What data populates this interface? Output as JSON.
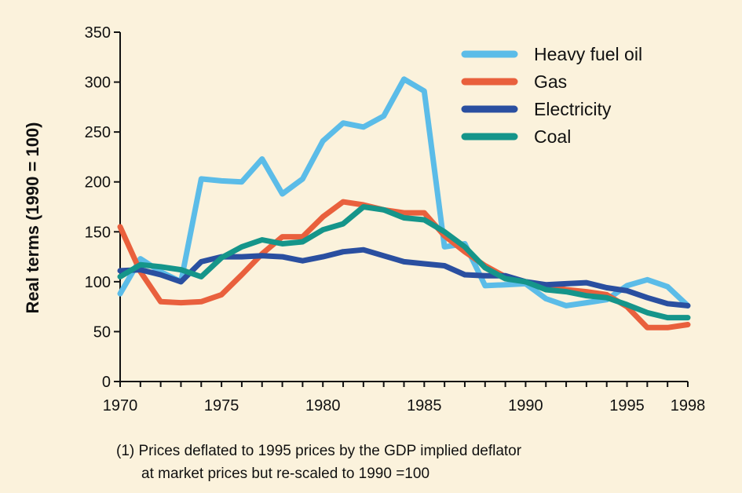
{
  "chart_data": {
    "type": "line",
    "title": "",
    "xlabel": "",
    "ylabel": "Real terms (1990 = 100)",
    "xlim": [
      1970,
      1998
    ],
    "ylim": [
      0,
      350
    ],
    "yticks": [
      0,
      50,
      100,
      150,
      200,
      250,
      300,
      350
    ],
    "xtick_labels": [
      {
        "x": 1970,
        "label": "1970"
      },
      {
        "x": 1975,
        "label": "1975"
      },
      {
        "x": 1980,
        "label": "1980"
      },
      {
        "x": 1985,
        "label": "1985"
      },
      {
        "x": 1990,
        "label": "1990"
      },
      {
        "x": 1995,
        "label": "1995"
      },
      {
        "x": 1998,
        "label": "1998"
      }
    ],
    "legend_position": "top-right",
    "x": [
      1970,
      1971,
      1972,
      1973,
      1974,
      1975,
      1976,
      1977,
      1978,
      1979,
      1980,
      1981,
      1982,
      1983,
      1984,
      1985,
      1986,
      1987,
      1988,
      1989,
      1990,
      1991,
      1992,
      1993,
      1994,
      1995,
      1996,
      1997,
      1998
    ],
    "series": [
      {
        "name": "Heavy fuel oil",
        "color": "#5bbce8",
        "values": [
          88,
          123,
          110,
          100,
          203,
          201,
          200,
          223,
          188,
          203,
          241,
          259,
          255,
          266,
          303,
          291,
          135,
          138,
          96,
          97,
          98,
          83,
          76,
          79,
          82,
          96,
          102,
          95,
          76
        ]
      },
      {
        "name": "Gas",
        "color": "#e9603d",
        "values": [
          155,
          110,
          80,
          79,
          80,
          87,
          107,
          128,
          145,
          145,
          165,
          180,
          177,
          172,
          169,
          169,
          146,
          130,
          116,
          105,
          100,
          95,
          92,
          90,
          87,
          75,
          54,
          54,
          57
        ]
      },
      {
        "name": "Electricity",
        "color": "#2a4fa0",
        "values": [
          111,
          112,
          107,
          100,
          120,
          125,
          125,
          126,
          125,
          121,
          125,
          130,
          132,
          126,
          120,
          118,
          116,
          107,
          106,
          106,
          100,
          97,
          98,
          99,
          94,
          91,
          84,
          78,
          76
        ]
      },
      {
        "name": "Coal",
        "color": "#15958a",
        "values": [
          105,
          117,
          115,
          112,
          105,
          124,
          135,
          142,
          138,
          140,
          152,
          158,
          175,
          172,
          164,
          162,
          150,
          135,
          114,
          103,
          100,
          92,
          90,
          86,
          84,
          77,
          69,
          64,
          64
        ]
      }
    ]
  },
  "footnote": {
    "line1": "(1) Prices deflated to 1995 prices by the GDP implied deflator",
    "line2": "at market prices but re-scaled to 1990 =100"
  }
}
